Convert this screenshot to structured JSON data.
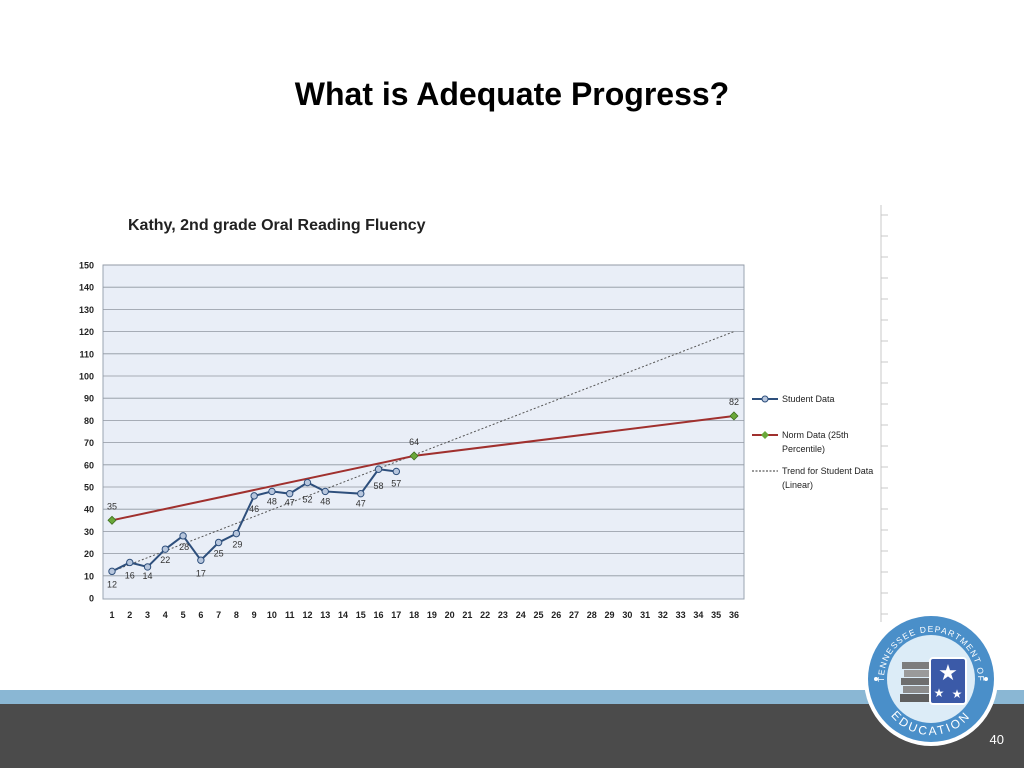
{
  "slide": {
    "title": "What is Adequate Progress?",
    "page_number": "40"
  },
  "seal": {
    "top_text": "TENNESSEE DEPARTMENT OF",
    "bottom_text": "EDUCATION"
  },
  "colors": {
    "student": "#2e4f7c",
    "norm": "#a0302e",
    "norm_marker": "#6aa83a",
    "plot_bg": "#e9eef7",
    "band_light": "#8ab7d4",
    "band_dark": "#4b4b4b"
  },
  "chart_data": {
    "type": "line",
    "title": "Kathy, 2nd grade Oral Reading Fluency",
    "x": [
      1,
      2,
      3,
      4,
      5,
      6,
      7,
      8,
      9,
      10,
      11,
      12,
      13,
      14,
      15,
      16,
      17,
      18,
      19,
      20,
      21,
      22,
      23,
      24,
      25,
      26,
      27,
      28,
      29,
      30,
      31,
      32,
      33,
      34,
      35,
      36
    ],
    "y_ticks": [
      0,
      10,
      20,
      30,
      40,
      50,
      60,
      70,
      80,
      90,
      100,
      110,
      120,
      130,
      140,
      150
    ],
    "ylim": [
      0,
      150
    ],
    "xlim": [
      1,
      36
    ],
    "grid": true,
    "legend_position": "right",
    "series": [
      {
        "name": "Student Data",
        "points": [
          [
            1,
            12
          ],
          [
            2,
            16
          ],
          [
            3,
            14
          ],
          [
            4,
            22
          ],
          [
            5,
            28
          ],
          [
            6,
            17
          ],
          [
            7,
            25
          ],
          [
            8,
            29
          ],
          [
            9,
            46
          ],
          [
            10,
            48
          ],
          [
            11,
            47
          ],
          [
            12,
            52
          ],
          [
            13,
            48
          ],
          [
            15,
            47
          ],
          [
            16,
            58
          ],
          [
            17,
            57
          ]
        ]
      },
      {
        "name": "Norm Data (25th Percentile)",
        "points": [
          [
            1,
            35
          ],
          [
            18,
            64
          ],
          [
            36,
            82
          ]
        ]
      },
      {
        "name": "Trend for Student Data (Linear)",
        "points": [
          [
            1,
            12
          ],
          [
            36,
            120
          ]
        ]
      }
    ]
  }
}
